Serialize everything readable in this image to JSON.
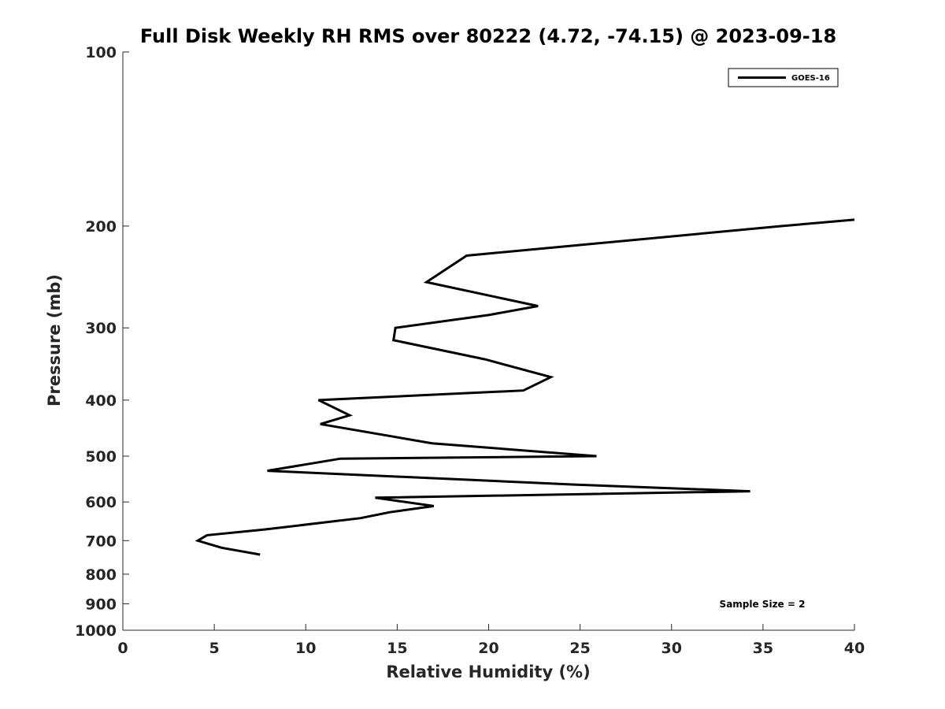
{
  "chart_data": {
    "type": "line",
    "title": "Full Disk Weekly RH RMS over 80222 (4.72, -74.15) @ 2023-09-18",
    "xlabel": "Relative Humidity (%)",
    "ylabel": "Pressure (mb)",
    "xlim": [
      0,
      40
    ],
    "ylim": [
      1000,
      100
    ],
    "y_scale": "log",
    "y_inverted": true,
    "grid": false,
    "legend_position": "top-right",
    "x_ticks": [
      "0",
      "5",
      "10",
      "15",
      "20",
      "25",
      "30",
      "35",
      "40"
    ],
    "y_ticks": [
      "100",
      "200",
      "300",
      "400",
      "500",
      "600",
      "700",
      "800",
      "900",
      "1000"
    ],
    "annotation": "Sample Size = 2",
    "series": [
      {
        "name": "GOES-16",
        "color": "#000000",
        "points": [
          [
            40.0,
            195
          ],
          [
            36.0,
            200
          ],
          [
            18.8,
            225
          ],
          [
            16.6,
            250
          ],
          [
            22.7,
            275
          ],
          [
            20.0,
            285
          ],
          [
            14.9,
            300
          ],
          [
            14.8,
            315
          ],
          [
            19.8,
            340
          ],
          [
            23.4,
            365
          ],
          [
            21.9,
            385
          ],
          [
            10.7,
            400
          ],
          [
            12.4,
            425
          ],
          [
            10.8,
            440
          ],
          [
            16.9,
            475
          ],
          [
            25.9,
            500
          ],
          [
            11.9,
            505
          ],
          [
            7.9,
            530
          ],
          [
            24.8,
            560
          ],
          [
            34.3,
            575
          ],
          [
            13.8,
            590
          ],
          [
            17.0,
            610
          ],
          [
            14.6,
            625
          ],
          [
            13.0,
            640
          ],
          [
            7.7,
            670
          ],
          [
            4.6,
            685
          ],
          [
            4.1,
            700
          ],
          [
            5.4,
            720
          ],
          [
            7.5,
            740
          ]
        ]
      }
    ]
  }
}
